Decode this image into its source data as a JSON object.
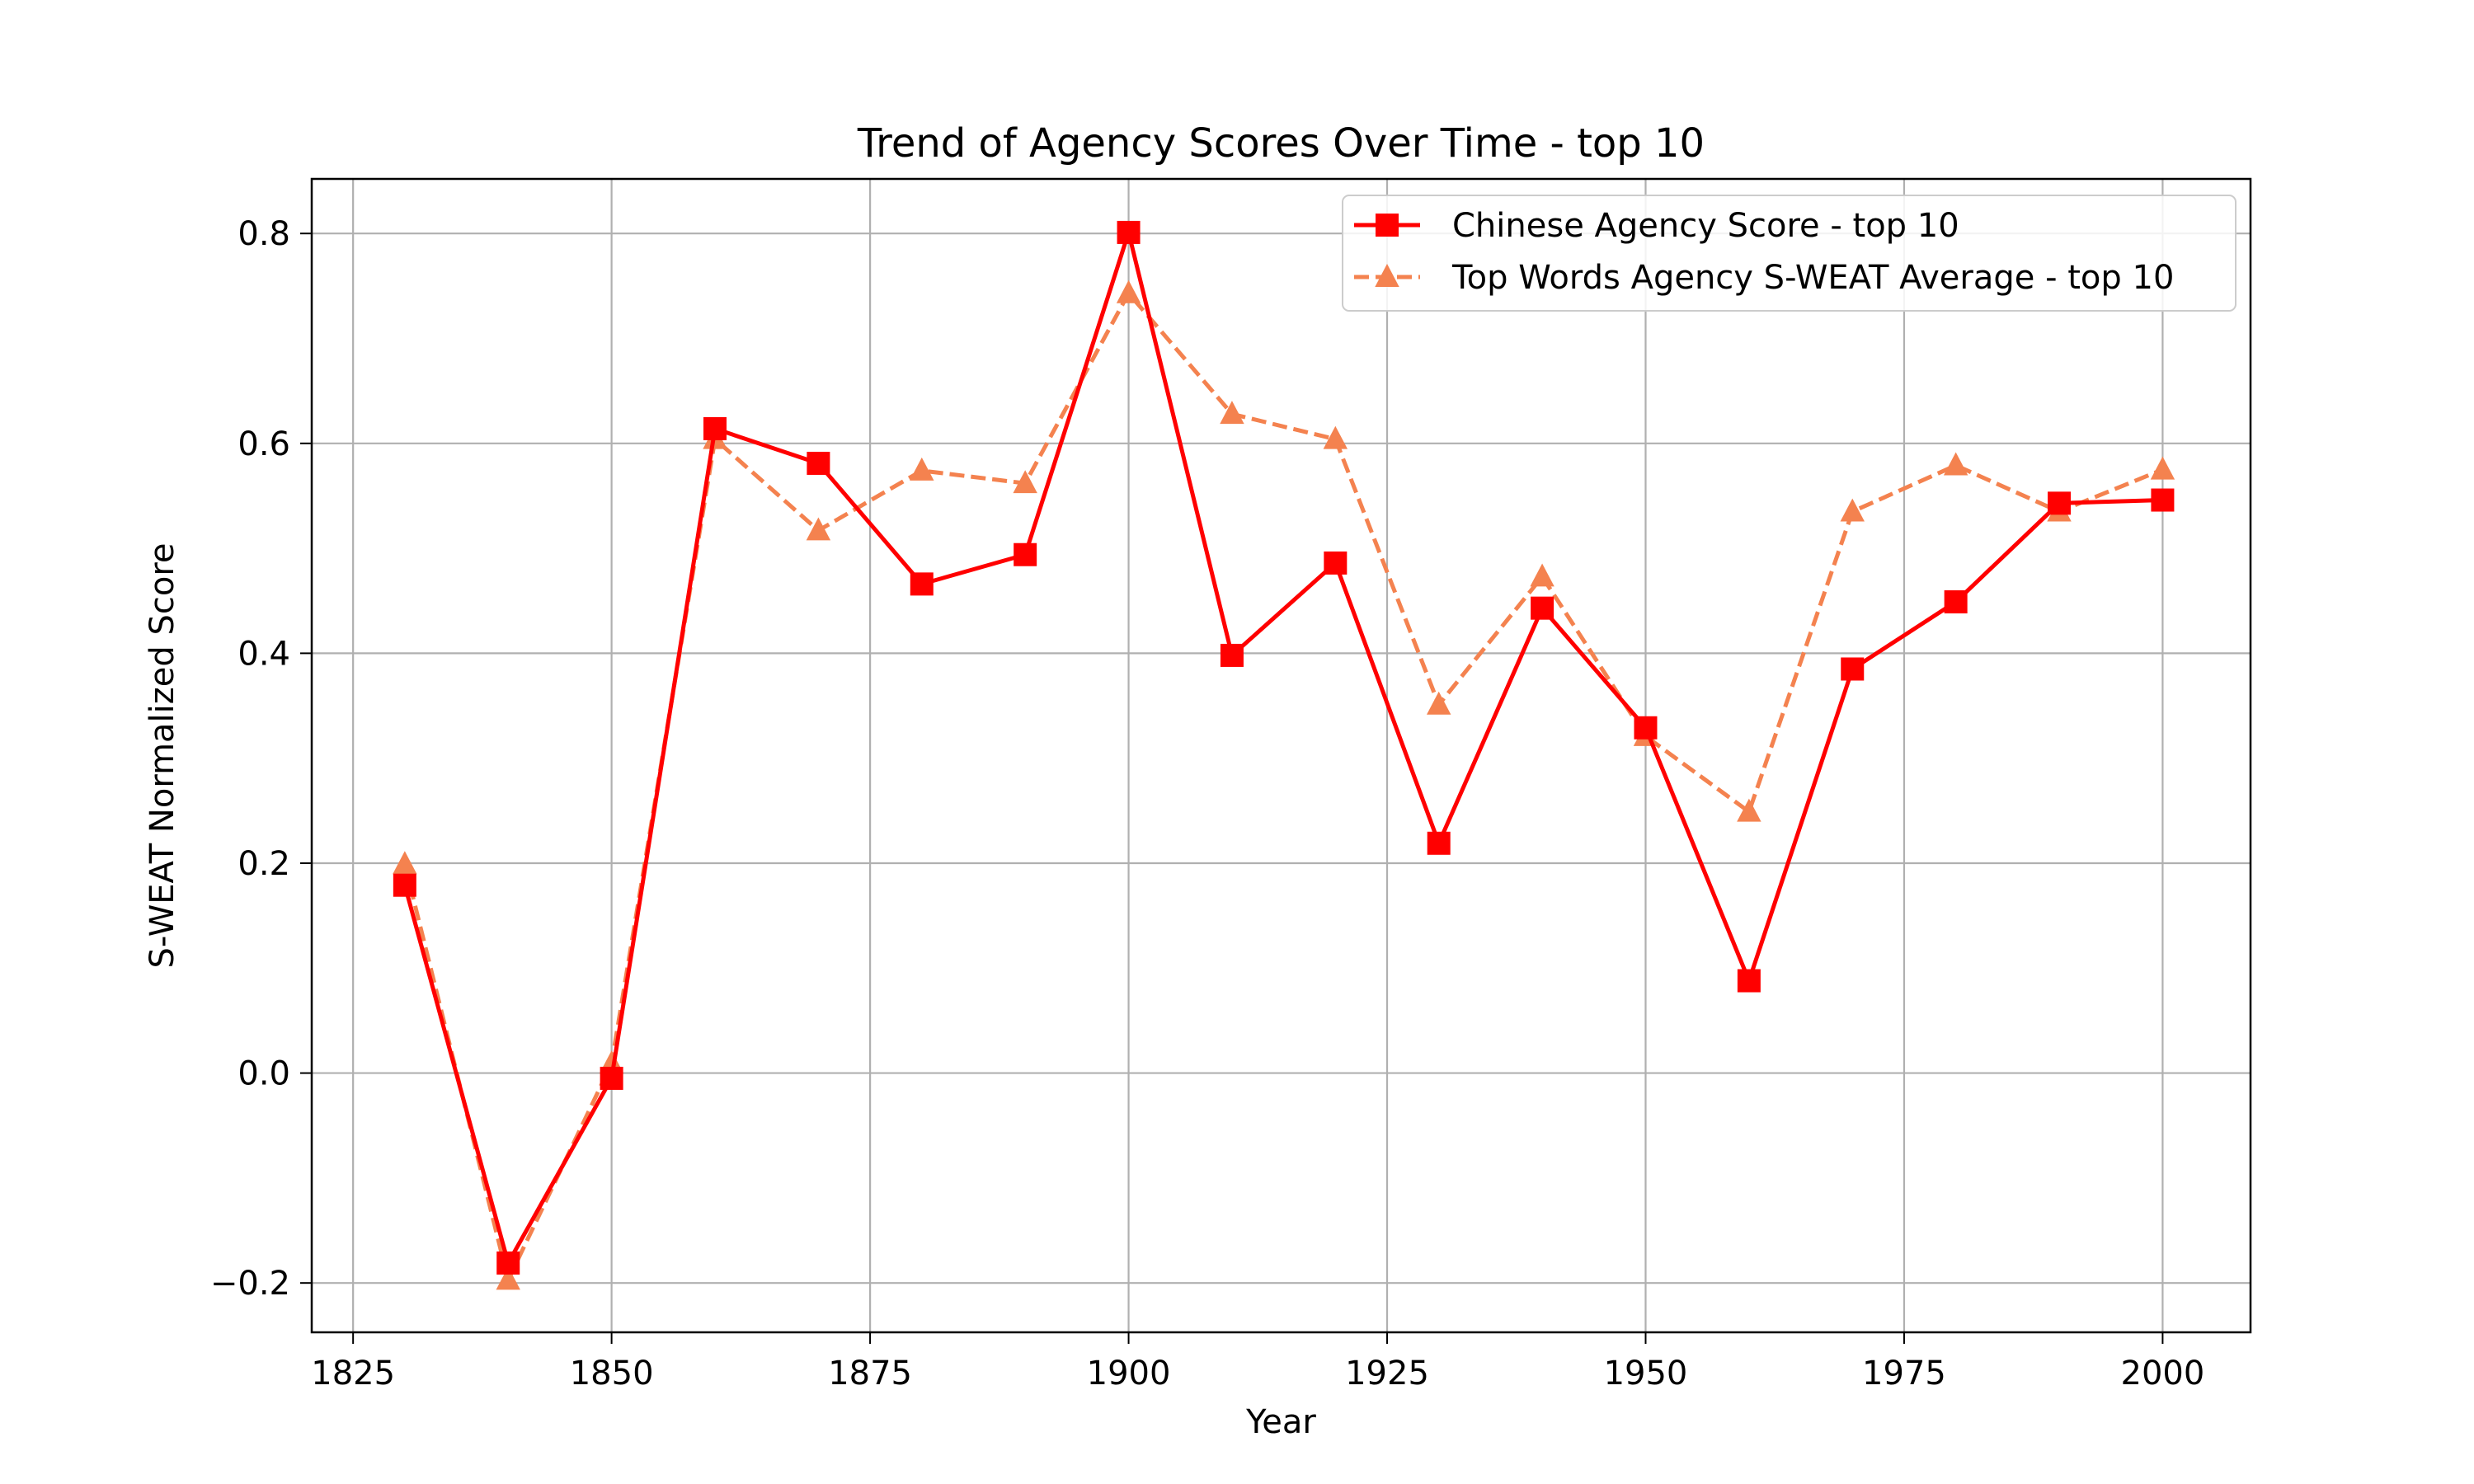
{
  "chart_data": {
    "type": "line",
    "title": "Trend of Agency Scores Over Time - top 10",
    "xlabel": "Year",
    "ylabel": "S-WEAT Normalized Score",
    "xlim": [
      1821,
      2008.5
    ],
    "ylim": [
      -0.247,
      0.852
    ],
    "xticks": [
      1825,
      1850,
      1875,
      1900,
      1925,
      1950,
      1975,
      2000
    ],
    "yticks": [
      -0.2,
      0.0,
      0.2,
      0.4,
      0.6,
      0.8
    ],
    "ytick_labels": [
      "−0.2",
      "0.0",
      "0.2",
      "0.4",
      "0.6",
      "0.8"
    ],
    "grid": true,
    "legend_position": "upper right",
    "x": [
      1830,
      1840,
      1850,
      1860,
      1870,
      1880,
      1890,
      1900,
      1910,
      1920,
      1930,
      1940,
      1950,
      1960,
      1970,
      1980,
      1990,
      2000
    ],
    "series": [
      {
        "name": "Chinese Agency Score - top 10",
        "color": "#ff0000",
        "line_style": "solid",
        "marker": "square",
        "values": [
          0.179,
          -0.181,
          -0.005,
          0.614,
          0.581,
          0.466,
          0.494,
          0.801,
          0.398,
          0.486,
          0.219,
          0.443,
          0.329,
          0.088,
          0.385,
          0.449,
          0.543,
          0.546
        ]
      },
      {
        "name": "Top Words Agency S-WEAT Average - top 10",
        "color": "#f4824f",
        "line_style": "dashed",
        "marker": "triangle",
        "values": [
          0.199,
          -0.197,
          0.009,
          0.604,
          0.517,
          0.574,
          0.562,
          0.743,
          0.628,
          0.604,
          0.351,
          0.473,
          0.321,
          0.249,
          0.535,
          0.579,
          0.535,
          0.575
        ]
      }
    ]
  }
}
